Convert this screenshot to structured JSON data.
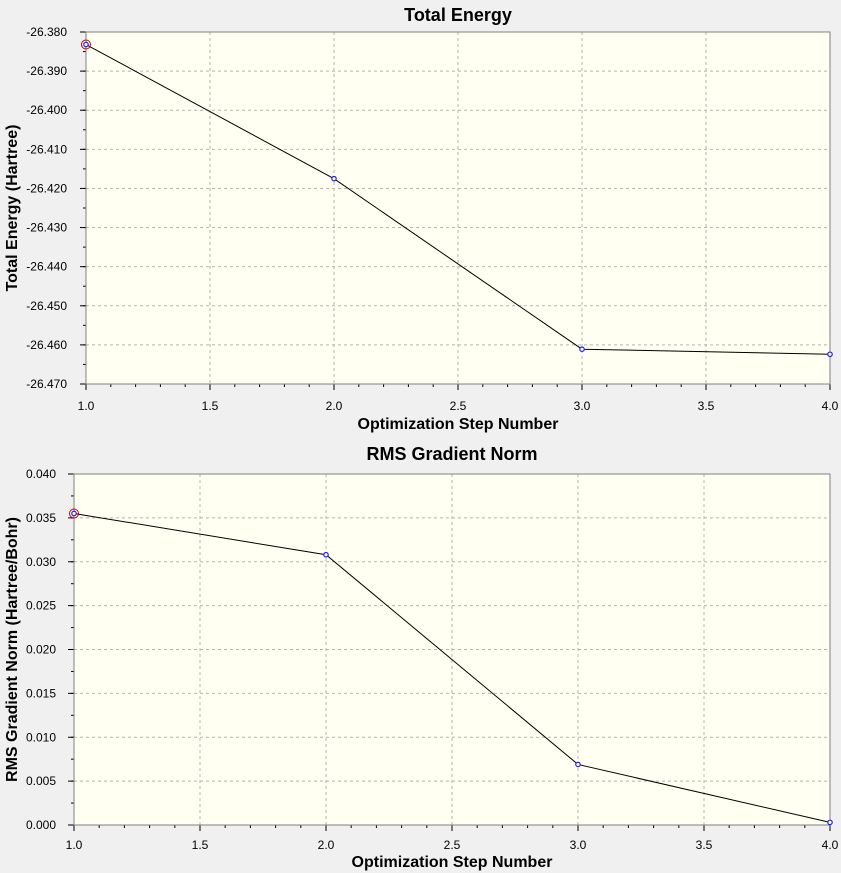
{
  "chart_data": [
    {
      "type": "line",
      "title": "Total Energy",
      "xlabel": "Optimization Step Number",
      "ylabel": "Total Energy (Hartree)",
      "x": [
        1,
        2,
        3,
        4
      ],
      "series": [
        {
          "values": [
            -26.3832,
            -26.4175,
            -26.4611,
            -26.4624
          ]
        }
      ],
      "xlim": [
        1.0,
        4.0
      ],
      "ylim": [
        -26.47,
        -26.38
      ],
      "xticks": [
        "1.0",
        "1.5",
        "2.0",
        "2.5",
        "3.0",
        "3.5",
        "4.0"
      ],
      "yticks": [
        "-26.380",
        "-26.390",
        "-26.400",
        "-26.410",
        "-26.420",
        "-26.430",
        "-26.440",
        "-26.450",
        "-26.460",
        "-26.470"
      ],
      "grid": true,
      "highlighted_point_index": 0
    },
    {
      "type": "line",
      "title": "RMS Gradient Norm",
      "xlabel": "Optimization Step Number",
      "ylabel": "RMS Gradient Norm (Hartree/Bohr)",
      "x": [
        1,
        2,
        3,
        4
      ],
      "series": [
        {
          "values": [
            0.0355,
            0.0308,
            0.0069,
            0.0003
          ]
        }
      ],
      "xlim": [
        1.0,
        4.0
      ],
      "ylim": [
        0.0,
        0.04
      ],
      "xticks": [
        "1.0",
        "1.5",
        "2.0",
        "2.5",
        "3.0",
        "3.5",
        "4.0"
      ],
      "yticks": [
        "0.040",
        "0.035",
        "0.030",
        "0.025",
        "0.020",
        "0.015",
        "0.010",
        "0.005",
        "0.000"
      ],
      "grid": true,
      "highlighted_point_index": 0
    }
  ],
  "colors": {
    "background": "#f0f0f0",
    "plot_area": "#fffff2",
    "line": "#000000",
    "point": "#1a1aff",
    "highlight": "#cc0000",
    "grid": "#b4b4b4"
  }
}
